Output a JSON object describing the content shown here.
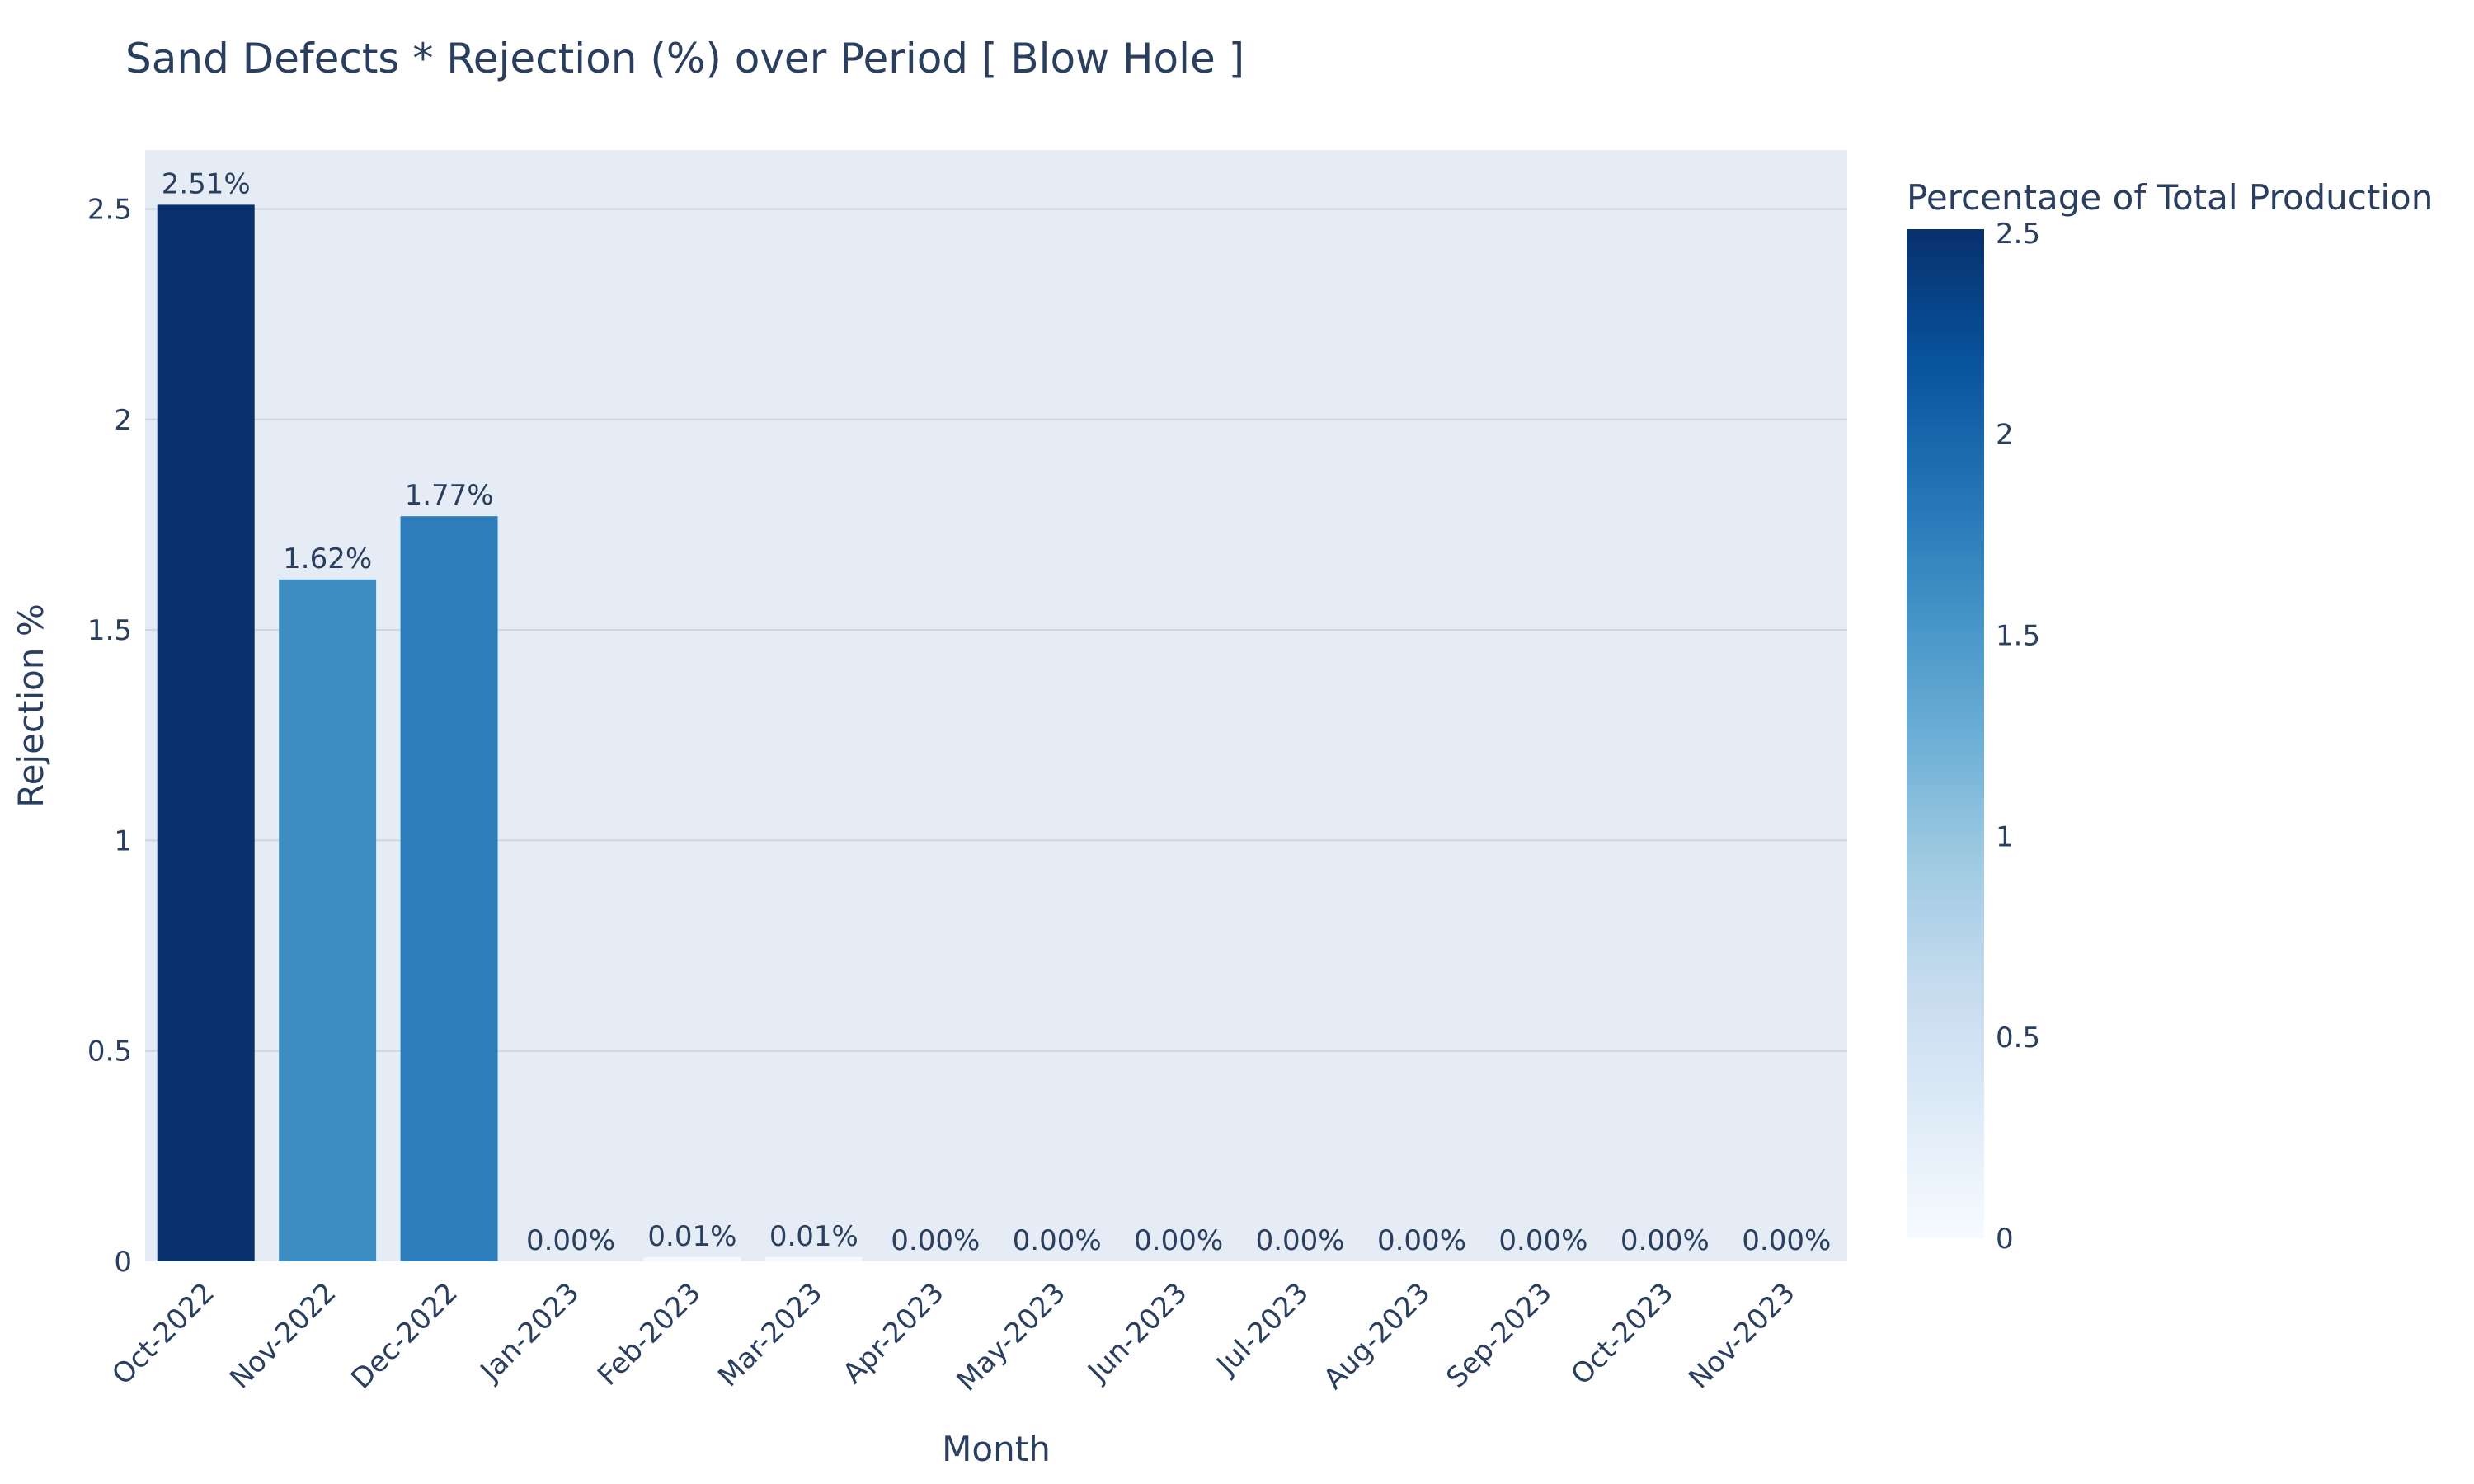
{
  "chart_data": {
    "type": "bar",
    "title": "Sand Defects * Rejection (%) over Period [ Blow Hole ]",
    "xlabel": "Month",
    "ylabel": "Rejection %",
    "categories": [
      "Oct-2022",
      "Nov-2022",
      "Dec-2022",
      "Jan-2023",
      "Feb-2023",
      "Mar-2023",
      "Apr-2023",
      "May-2023",
      "Jun-2023",
      "Jul-2023",
      "Aug-2023",
      "Sep-2023",
      "Oct-2023",
      "Nov-2023"
    ],
    "values": [
      2.51,
      1.62,
      1.77,
      0.0,
      0.01,
      0.01,
      0.0,
      0.0,
      0.0,
      0.0,
      0.0,
      0.0,
      0.0,
      0.0
    ],
    "bar_labels": [
      "2.51%",
      "1.62%",
      "1.77%",
      "0.00%",
      "0.01%",
      "0.01%",
      "0.00%",
      "0.00%",
      "0.00%",
      "0.00%",
      "0.00%",
      "0.00%",
      "0.00%",
      "0.00%"
    ],
    "ylim": [
      0,
      2.64
    ],
    "yticks": [
      0,
      0.5,
      1,
      1.5,
      2,
      2.5
    ],
    "ytick_labels": [
      "0",
      "0.5",
      "1",
      "1.5",
      "2",
      "2.5"
    ],
    "grid": true,
    "colorbar": {
      "title": "Percentage of Total Production",
      "range": [
        0,
        2.51
      ],
      "ticks": [
        0,
        0.5,
        1,
        1.5,
        2,
        2.5
      ],
      "tick_labels": [
        "0",
        "0.5",
        "1",
        "1.5",
        "2",
        "2.5"
      ],
      "colorscale": "Blues",
      "colors": [
        "#f7fbff",
        "#deebf7",
        "#c6dbef",
        "#9ecae1",
        "#6baed6",
        "#4292c6",
        "#2171b5",
        "#08519c",
        "#08306b"
      ]
    },
    "plot_background": "#e5ecf6",
    "gridline_color": "#d0d5dd"
  }
}
